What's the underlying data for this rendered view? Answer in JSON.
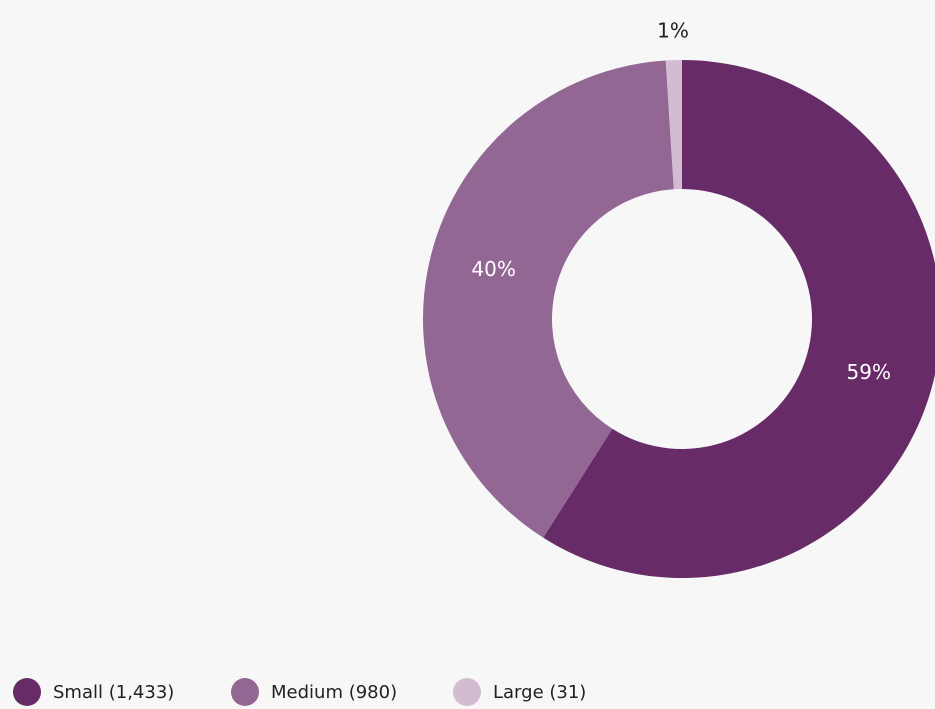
{
  "chart_data": {
    "type": "donut",
    "categories": [
      "Small (1,433)",
      "Medium (980)",
      "Large (31)"
    ],
    "values": [
      59,
      40,
      1
    ],
    "value_labels": [
      "59%",
      "40%",
      "1%"
    ],
    "colors": [
      "#672b68",
      "#936793",
      "#d1bcd1"
    ]
  }
}
